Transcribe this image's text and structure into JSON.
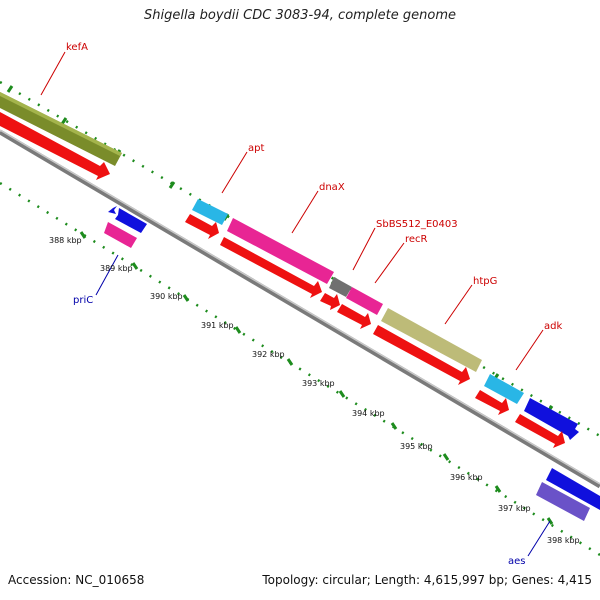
{
  "title": "Shigella boydii CDC 3083-94, complete genome",
  "footer": {
    "accession": "Accession: NC_010658",
    "summary": "Topology: circular; Length: 4,615,997 bp; Genes: 4,415"
  },
  "colors": {
    "backbone": "#8a8a8a",
    "cds": "#ee1111",
    "lime": "#7a8c2a",
    "cyan": "#29b6e6",
    "magenta": "#e82594",
    "blue": "#1010dd",
    "gray": "#707070",
    "khaki": "#bdbb78",
    "purple": "#6a52c8",
    "tick_green": "#1e8c1e",
    "label_forward": "#cc0000",
    "label_reverse": "#0000aa"
  },
  "scale": {
    "unit": "kbp",
    "ticks": [
      "388 kbp",
      "389 kbp",
      "390 kbp",
      "391 kbp",
      "392 kbp",
      "393 kbp",
      "394 kbp",
      "395 kbp",
      "396 kbp",
      "397 kbp",
      "398 kbp"
    ]
  },
  "genes": [
    {
      "name": "kefA",
      "strand": "forward"
    },
    {
      "name": "apt",
      "strand": "forward"
    },
    {
      "name": "dnaX",
      "strand": "forward"
    },
    {
      "name": "SbBS512_E0403",
      "strand": "forward"
    },
    {
      "name": "recR",
      "strand": "forward"
    },
    {
      "name": "htpG",
      "strand": "forward"
    },
    {
      "name": "adk",
      "strand": "forward"
    },
    {
      "name": "priC",
      "strand": "reverse"
    },
    {
      "name": "aes",
      "strand": "reverse"
    }
  ]
}
